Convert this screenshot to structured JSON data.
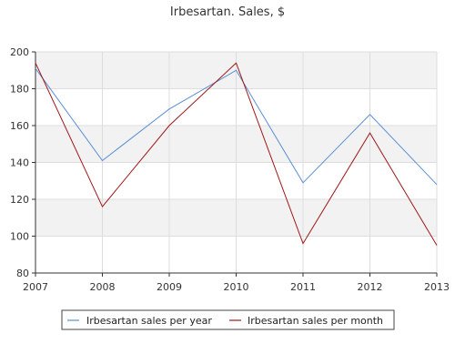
{
  "chart_data": {
    "type": "line",
    "title": "Irbesartan. Sales, $",
    "xlabel": "",
    "ylabel": "",
    "x": [
      "2007",
      "2008",
      "2009",
      "2010",
      "2011",
      "2012",
      "2013"
    ],
    "ylim": [
      80,
      200
    ],
    "yticks": [
      80,
      100,
      120,
      140,
      160,
      180,
      200
    ],
    "grid": true,
    "legend_position": "bottom",
    "series": [
      {
        "name": "Irbesartan sales per year",
        "color": "#5b8fd6",
        "values": [
          191,
          141,
          169,
          190,
          129,
          166,
          128
        ]
      },
      {
        "name": "Irbesartan sales per month",
        "color": "#a01818",
        "values": [
          194,
          116,
          160,
          194,
          96,
          156,
          95
        ]
      }
    ]
  }
}
